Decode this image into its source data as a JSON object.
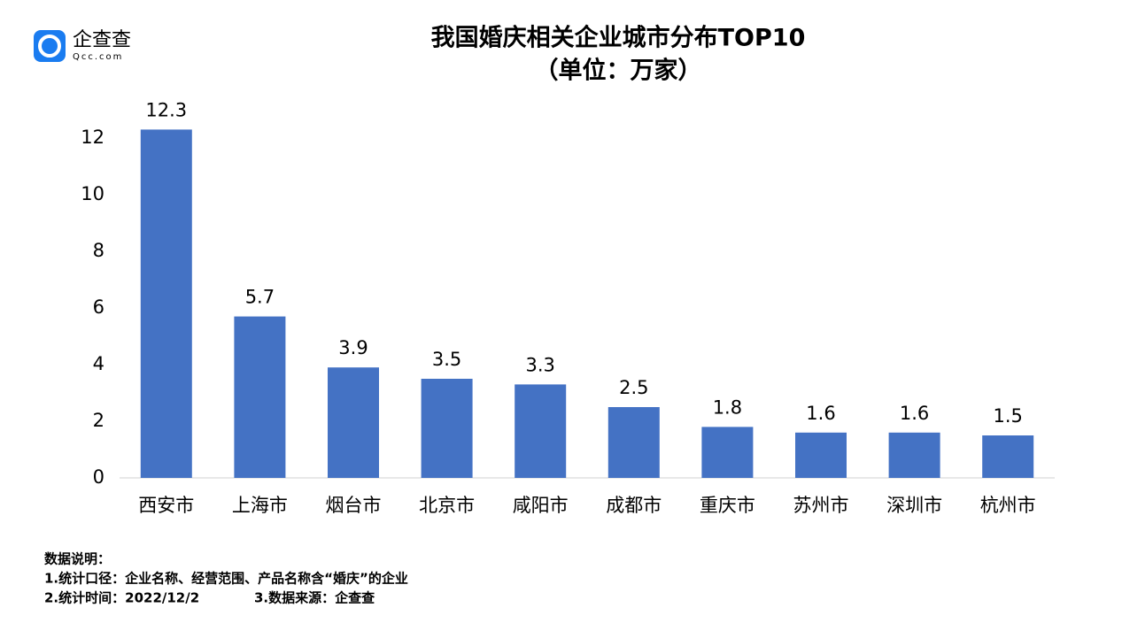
{
  "logo": {
    "name": "企查查",
    "domain": "Qcc.com"
  },
  "chart_data": {
    "type": "bar",
    "title": "我国婚庆相关企业城市分布TOP10",
    "subtitle": "（单位：万家）",
    "categories": [
      "西安市",
      "上海市",
      "烟台市",
      "北京市",
      "咸阳市",
      "成都市",
      "重庆市",
      "苏州市",
      "深圳市",
      "杭州市"
    ],
    "values": [
      12.3,
      5.7,
      3.9,
      3.5,
      3.3,
      2.5,
      1.8,
      1.6,
      1.6,
      1.5
    ],
    "color": "#4472c4",
    "ylim": [
      0,
      12
    ],
    "yticks": [
      0,
      2,
      4,
      6,
      8,
      10,
      12
    ],
    "grid": false
  },
  "notes": {
    "heading": "数据说明：",
    "line1": "1.统计口径：企业名称、经营范围、产品名称含“婚庆”的企业",
    "line2a": "2.统计时间：2022/12/2",
    "line2b": "3.数据来源：企查查"
  }
}
